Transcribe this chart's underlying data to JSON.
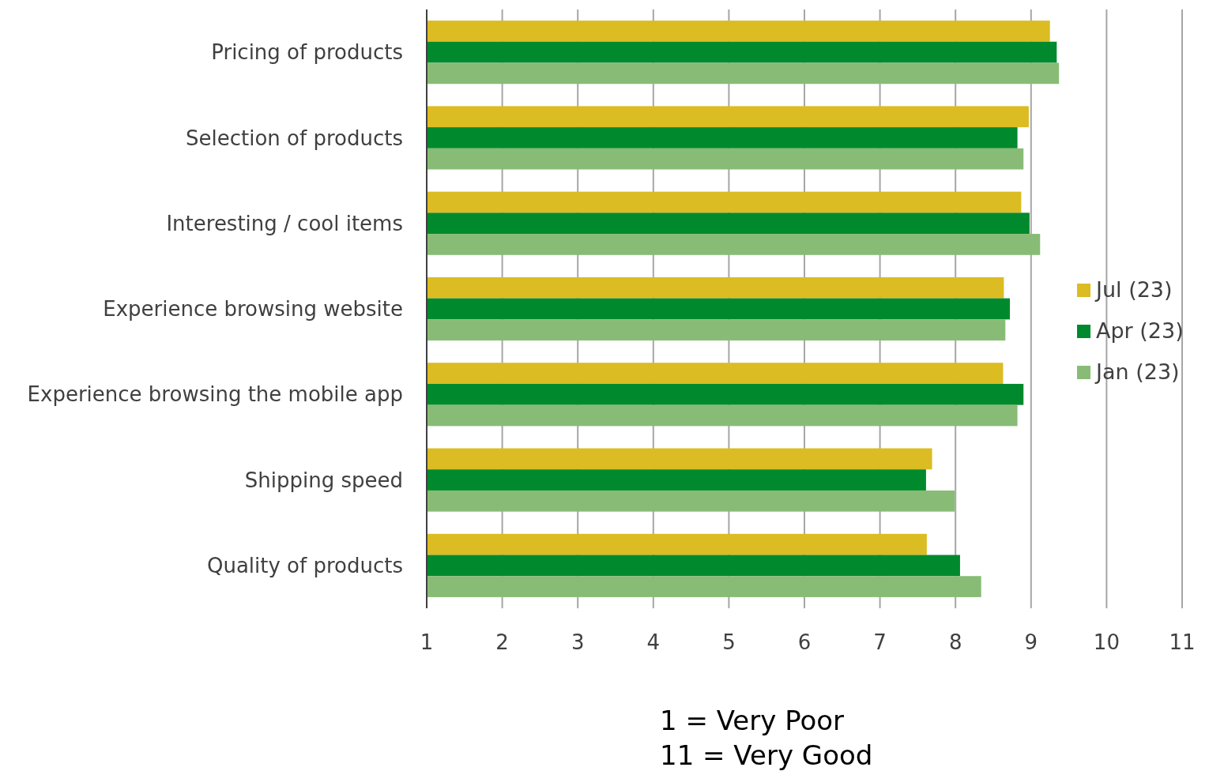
{
  "chart_data": {
    "type": "bar",
    "orientation": "horizontal",
    "categories": [
      "Pricing of products",
      "Selection of products",
      "Interesting / cool items",
      "Experience browsing website",
      "Experience browsing the mobile app",
      "Shipping speed",
      "Quality of products"
    ],
    "series": [
      {
        "name": "Jul (23)",
        "color": "#dbbc23",
        "values": [
          9.25,
          8.97,
          8.87,
          8.64,
          8.63,
          7.69,
          7.62
        ]
      },
      {
        "name": "Apr (23)",
        "color": "#018a2d",
        "values": [
          9.34,
          8.82,
          8.98,
          8.72,
          8.9,
          7.61,
          8.06
        ]
      },
      {
        "name": "Jan (23)",
        "color": "#88bc76",
        "values": [
          9.37,
          8.9,
          9.12,
          8.66,
          8.82,
          7.99,
          8.34
        ]
      }
    ],
    "xlim": [
      1,
      11
    ],
    "xticks": [
      1,
      2,
      3,
      4,
      5,
      6,
      7,
      8,
      9,
      10,
      11
    ],
    "grid": "x",
    "legend": "right",
    "annotations": [
      "1 = Very Poor",
      "11 = Very Good"
    ]
  }
}
